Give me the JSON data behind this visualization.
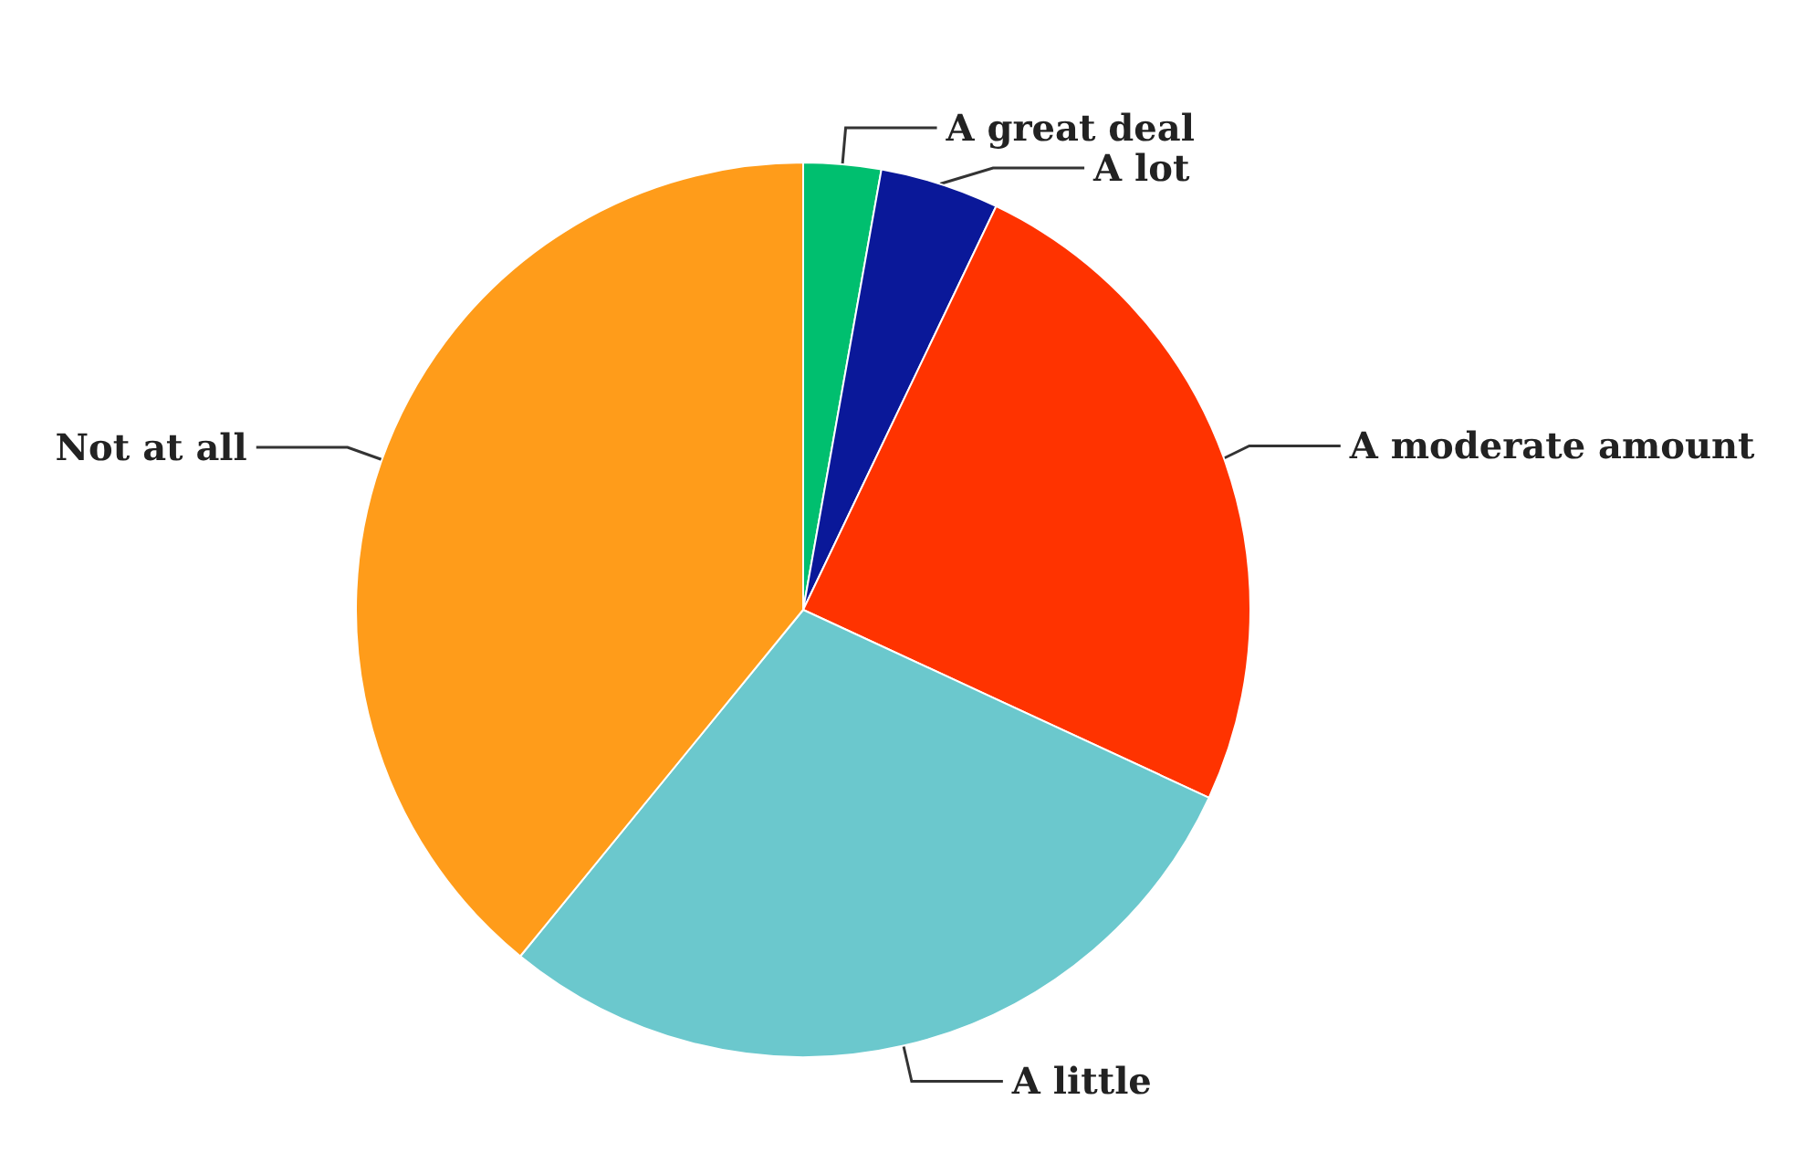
{
  "chart_data": {
    "type": "pie",
    "categories": [
      "A great deal",
      "A lot",
      "A moderate amount",
      "A little",
      "Not at all"
    ],
    "values": [
      2.8,
      4.3,
      24.8,
      29,
      39.1
    ],
    "colors": [
      "#00bf6f",
      "#0a1899",
      "#ff3300",
      "#6bc8cd",
      "#ff9c1a"
    ]
  }
}
